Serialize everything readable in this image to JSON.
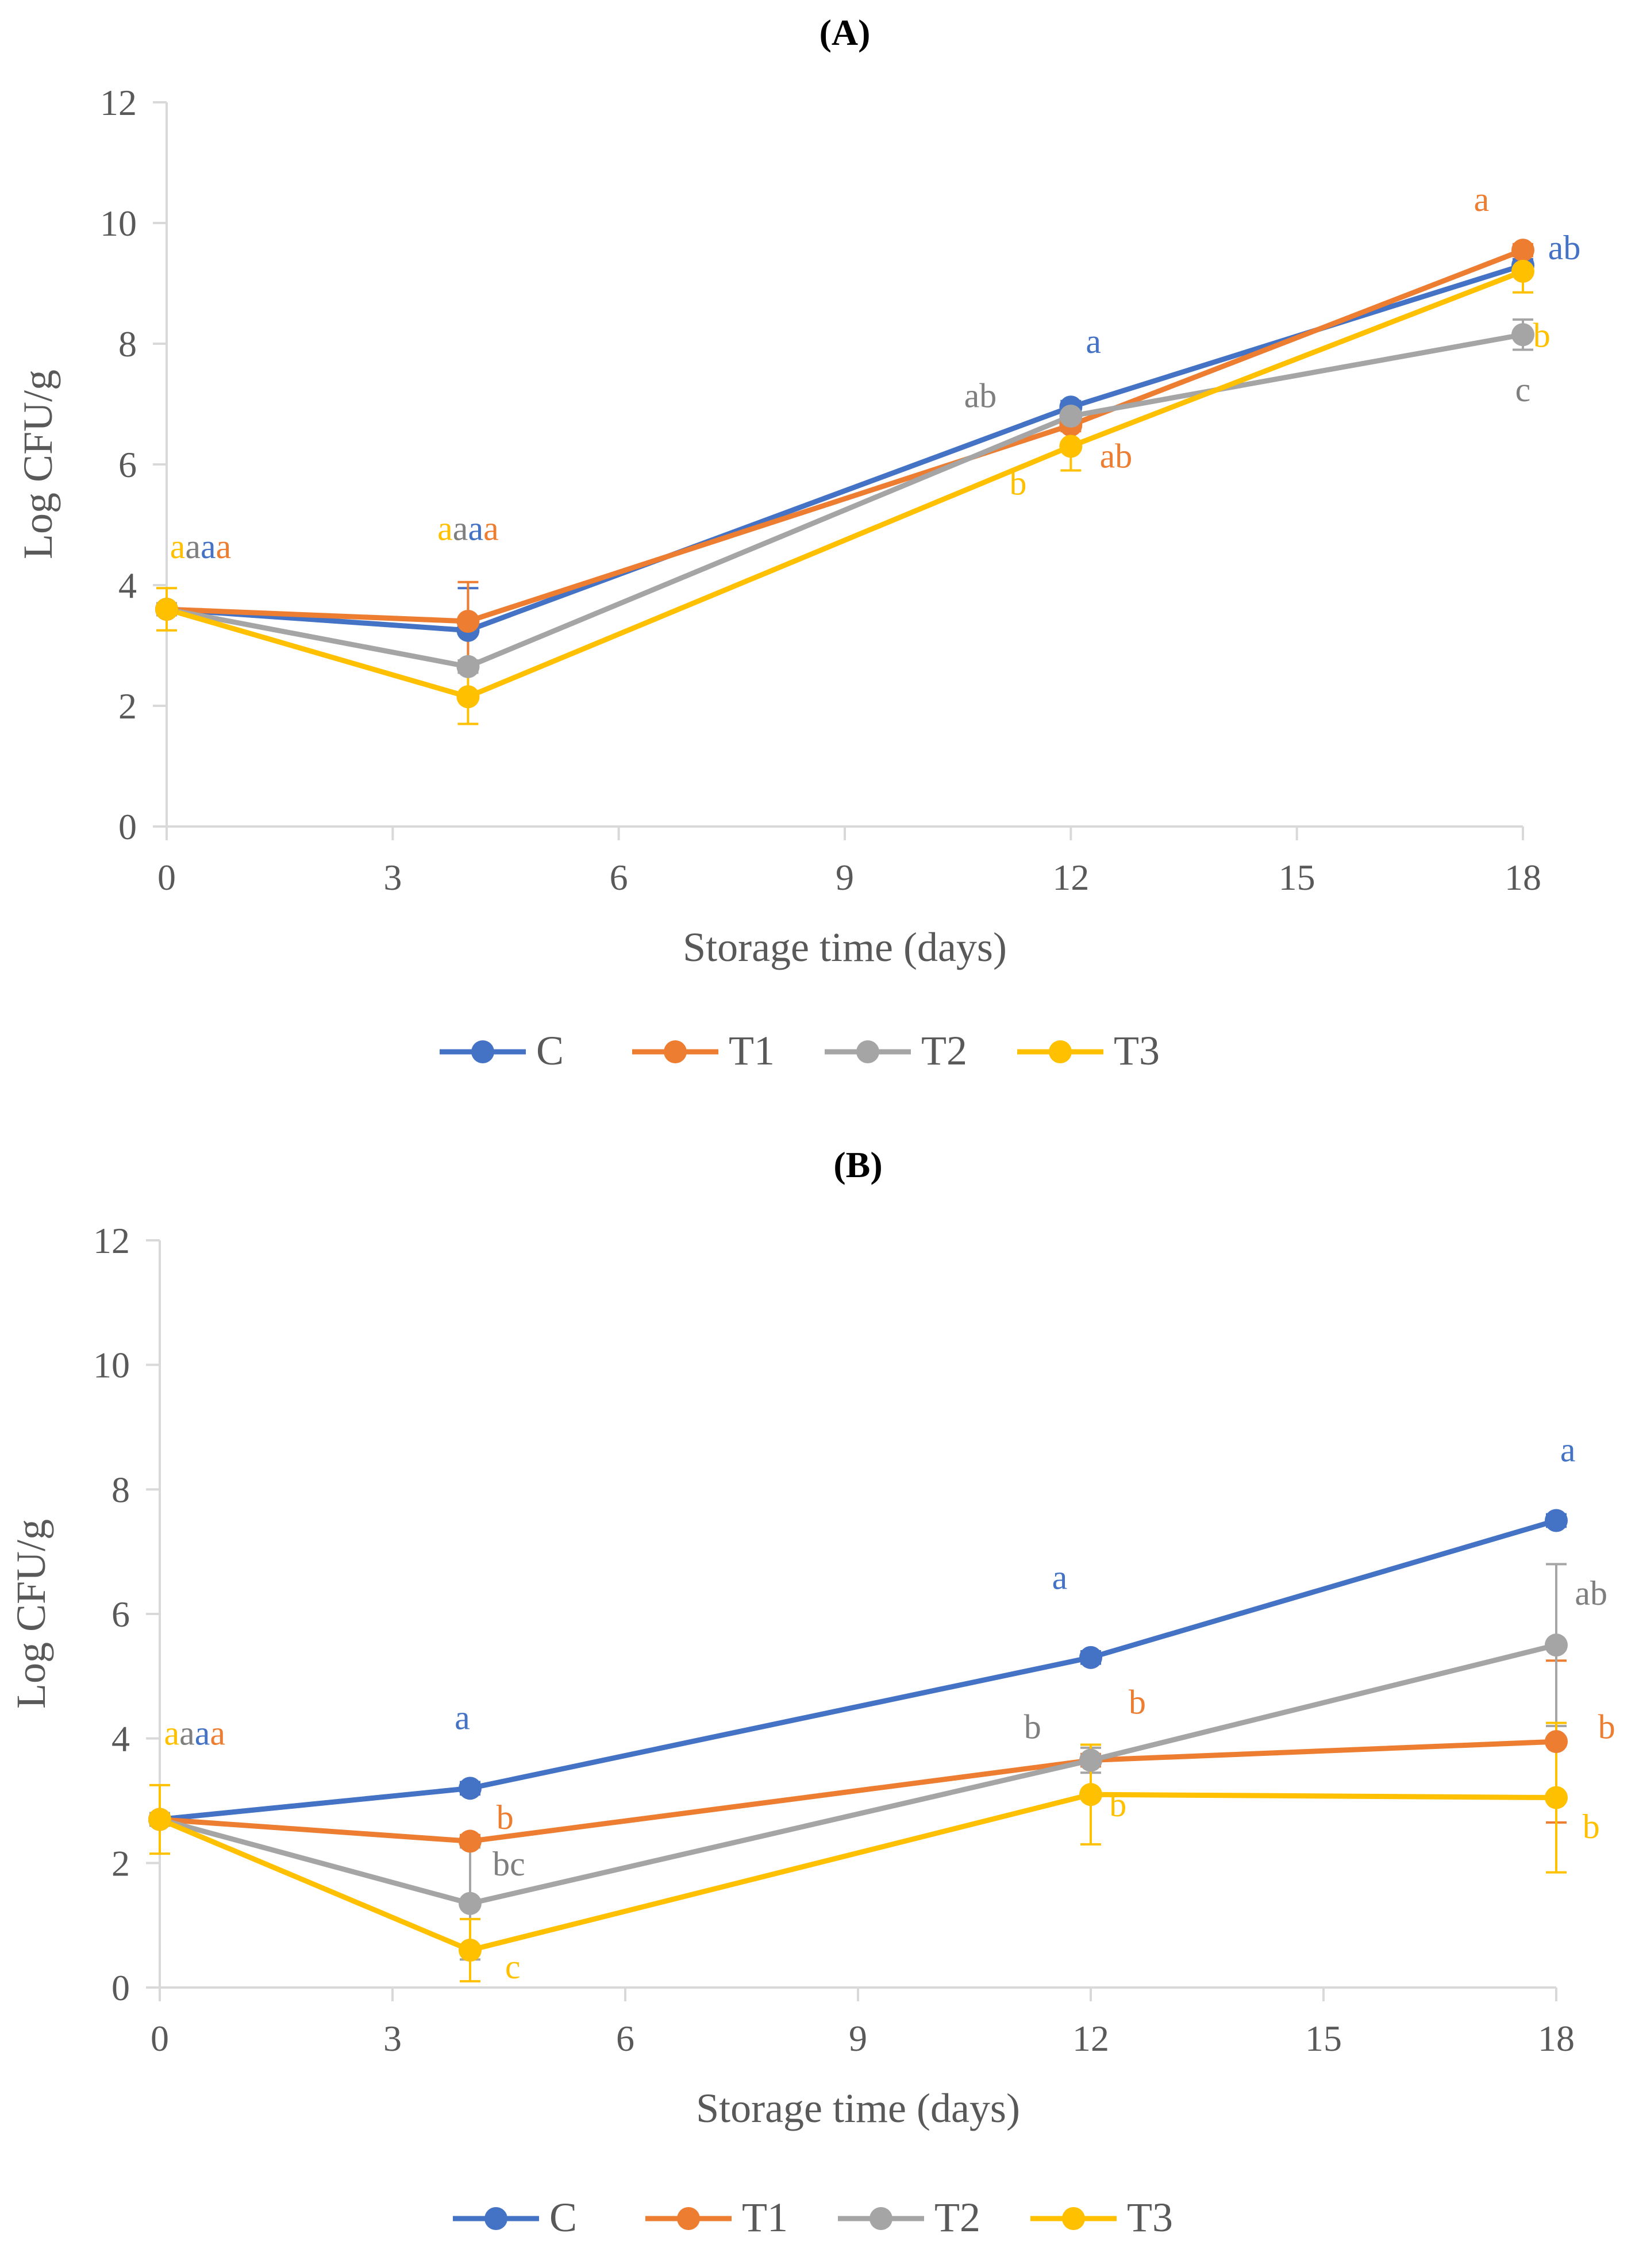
{
  "colors": {
    "C": "#4472C4",
    "T1": "#ED7D31",
    "T2": "#A5A5A5",
    "T3": "#FFC000",
    "axis": "#D9D9D9",
    "text": "#595959",
    "annot_gray": "#7F7F7F"
  },
  "chart_data": [
    {
      "type": "line",
      "title": "(A)",
      "xlabel": "Storage time (days)",
      "ylabel": "Log CFU/g",
      "xlim": [
        0,
        18
      ],
      "ylim": [
        0,
        12
      ],
      "xticks": [
        0,
        3,
        6,
        9,
        12,
        15,
        18
      ],
      "yticks": [
        0,
        2,
        4,
        6,
        8,
        10,
        12
      ],
      "x": [
        0,
        4,
        12,
        18
      ],
      "legend_position": "bottom",
      "series": [
        {
          "name": "C",
          "values": [
            3.6,
            3.25,
            6.95,
            9.3
          ],
          "errors": [
            0.1,
            0.7,
            0.1,
            0.1
          ]
        },
        {
          "name": "T1",
          "values": [
            3.6,
            3.4,
            6.65,
            9.55
          ],
          "errors": [
            0.1,
            0.65,
            0.1,
            0.1
          ]
        },
        {
          "name": "T2",
          "values": [
            3.6,
            2.65,
            6.8,
            8.15
          ],
          "errors": [
            0.1,
            0.1,
            0.1,
            0.25
          ]
        },
        {
          "name": "T3",
          "values": [
            3.6,
            2.15,
            6.3,
            9.2
          ],
          "errors": [
            0.35,
            0.45,
            0.4,
            0.35
          ]
        }
      ],
      "annotations": [
        {
          "x": 0,
          "parts": [
            {
              "text": "a",
              "series": "T3"
            },
            {
              "text": "a",
              "series": "T2"
            },
            {
              "text": "a",
              "series": "C"
            },
            {
              "text": "a",
              "series": "T1"
            }
          ],
          "dx": 0.45,
          "y": 4.45
        },
        {
          "x": 4,
          "parts": [
            {
              "text": "a",
              "series": "T3"
            },
            {
              "text": "a",
              "series": "T2"
            },
            {
              "text": "a",
              "series": "C"
            },
            {
              "text": "a",
              "series": "T1"
            }
          ],
          "dx": 0.0,
          "y": 4.75
        },
        {
          "x": 12,
          "parts": [
            {
              "text": "a",
              "series": "C"
            }
          ],
          "dx": 0.3,
          "y": 7.85
        },
        {
          "x": 12,
          "parts": [
            {
              "text": "ab",
              "series": "T2"
            }
          ],
          "dx": -1.2,
          "y": 6.95
        },
        {
          "x": 12,
          "parts": [
            {
              "text": "ab",
              "series": "T1"
            }
          ],
          "dx": 0.6,
          "y": 5.95
        },
        {
          "x": 12,
          "parts": [
            {
              "text": "b",
              "series": "T3"
            }
          ],
          "dx": -0.7,
          "y": 5.5
        },
        {
          "x": 18,
          "parts": [
            {
              "text": "a",
              "series": "T1"
            }
          ],
          "dx": -0.55,
          "y": 10.2
        },
        {
          "x": 18,
          "parts": [
            {
              "text": "ab",
              "series": "C"
            }
          ],
          "dx": 0.55,
          "y": 9.4
        },
        {
          "x": 18,
          "parts": [
            {
              "text": "b",
              "series": "T3"
            }
          ],
          "dx": 0.25,
          "y": 7.95
        },
        {
          "x": 18,
          "parts": [
            {
              "text": "c",
              "series": "T2"
            }
          ],
          "dx": 0.0,
          "y": 7.05
        }
      ]
    },
    {
      "type": "line",
      "title": "(B)",
      "xlabel": "Storage time (days)",
      "ylabel": "Log CFU/g",
      "xlim": [
        0,
        18
      ],
      "ylim": [
        0,
        12
      ],
      "xticks": [
        0,
        3,
        6,
        9,
        12,
        15,
        18
      ],
      "yticks": [
        0,
        2,
        4,
        6,
        8,
        10,
        12
      ],
      "x": [
        0,
        4,
        12,
        18
      ],
      "legend_position": "bottom",
      "series": [
        {
          "name": "C",
          "values": [
            2.7,
            3.2,
            5.3,
            7.5
          ],
          "errors": [
            0.1,
            0.1,
            0.1,
            0.1
          ]
        },
        {
          "name": "T1",
          "values": [
            2.7,
            2.35,
            3.65,
            3.95
          ],
          "errors": [
            0.1,
            0.1,
            0.1,
            1.3
          ]
        },
        {
          "name": "T2",
          "values": [
            2.7,
            1.35,
            3.65,
            5.5
          ],
          "errors": [
            0.1,
            0.9,
            0.2,
            1.3
          ]
        },
        {
          "name": "T3",
          "values": [
            2.7,
            0.6,
            3.1,
            3.05
          ],
          "errors": [
            0.55,
            0.5,
            0.8,
            1.2
          ]
        }
      ],
      "annotations": [
        {
          "x": 0,
          "parts": [
            {
              "text": "a",
              "series": "T3"
            },
            {
              "text": "a",
              "series": "T2"
            },
            {
              "text": "a",
              "series": "C"
            },
            {
              "text": "a",
              "series": "T1"
            }
          ],
          "dx": 0.45,
          "y": 3.9
        },
        {
          "x": 4,
          "parts": [
            {
              "text": "a",
              "series": "C"
            }
          ],
          "dx": -0.1,
          "y": 4.15
        },
        {
          "x": 4,
          "parts": [
            {
              "text": "b",
              "series": "T1"
            }
          ],
          "dx": 0.45,
          "y": 2.55
        },
        {
          "x": 4,
          "parts": [
            {
              "text": "bc",
              "series": "T2"
            }
          ],
          "dx": 0.5,
          "y": 1.8
        },
        {
          "x": 4,
          "parts": [
            {
              "text": "c",
              "series": "T3"
            }
          ],
          "dx": 0.55,
          "y": 0.15
        },
        {
          "x": 12,
          "parts": [
            {
              "text": "a",
              "series": "C"
            }
          ],
          "dx": -0.4,
          "y": 6.4
        },
        {
          "x": 12,
          "parts": [
            {
              "text": "b",
              "series": "T1"
            }
          ],
          "dx": 0.6,
          "y": 4.4
        },
        {
          "x": 12,
          "parts": [
            {
              "text": "b",
              "series": "T2"
            }
          ],
          "dx": -0.75,
          "y": 4.0
        },
        {
          "x": 12,
          "parts": [
            {
              "text": "b",
              "series": "T3"
            }
          ],
          "dx": 0.35,
          "y": 2.75
        },
        {
          "x": 18,
          "parts": [
            {
              "text": "a",
              "series": "C"
            }
          ],
          "dx": 0.15,
          "y": 8.45
        },
        {
          "x": 18,
          "parts": [
            {
              "text": "ab",
              "series": "T2"
            }
          ],
          "dx": 0.45,
          "y": 6.15
        },
        {
          "x": 18,
          "parts": [
            {
              "text": "b",
              "series": "T1"
            }
          ],
          "dx": 0.65,
          "y": 4.0
        },
        {
          "x": 18,
          "parts": [
            {
              "text": "b",
              "series": "T3"
            }
          ],
          "dx": 0.45,
          "y": 2.4
        }
      ]
    }
  ]
}
